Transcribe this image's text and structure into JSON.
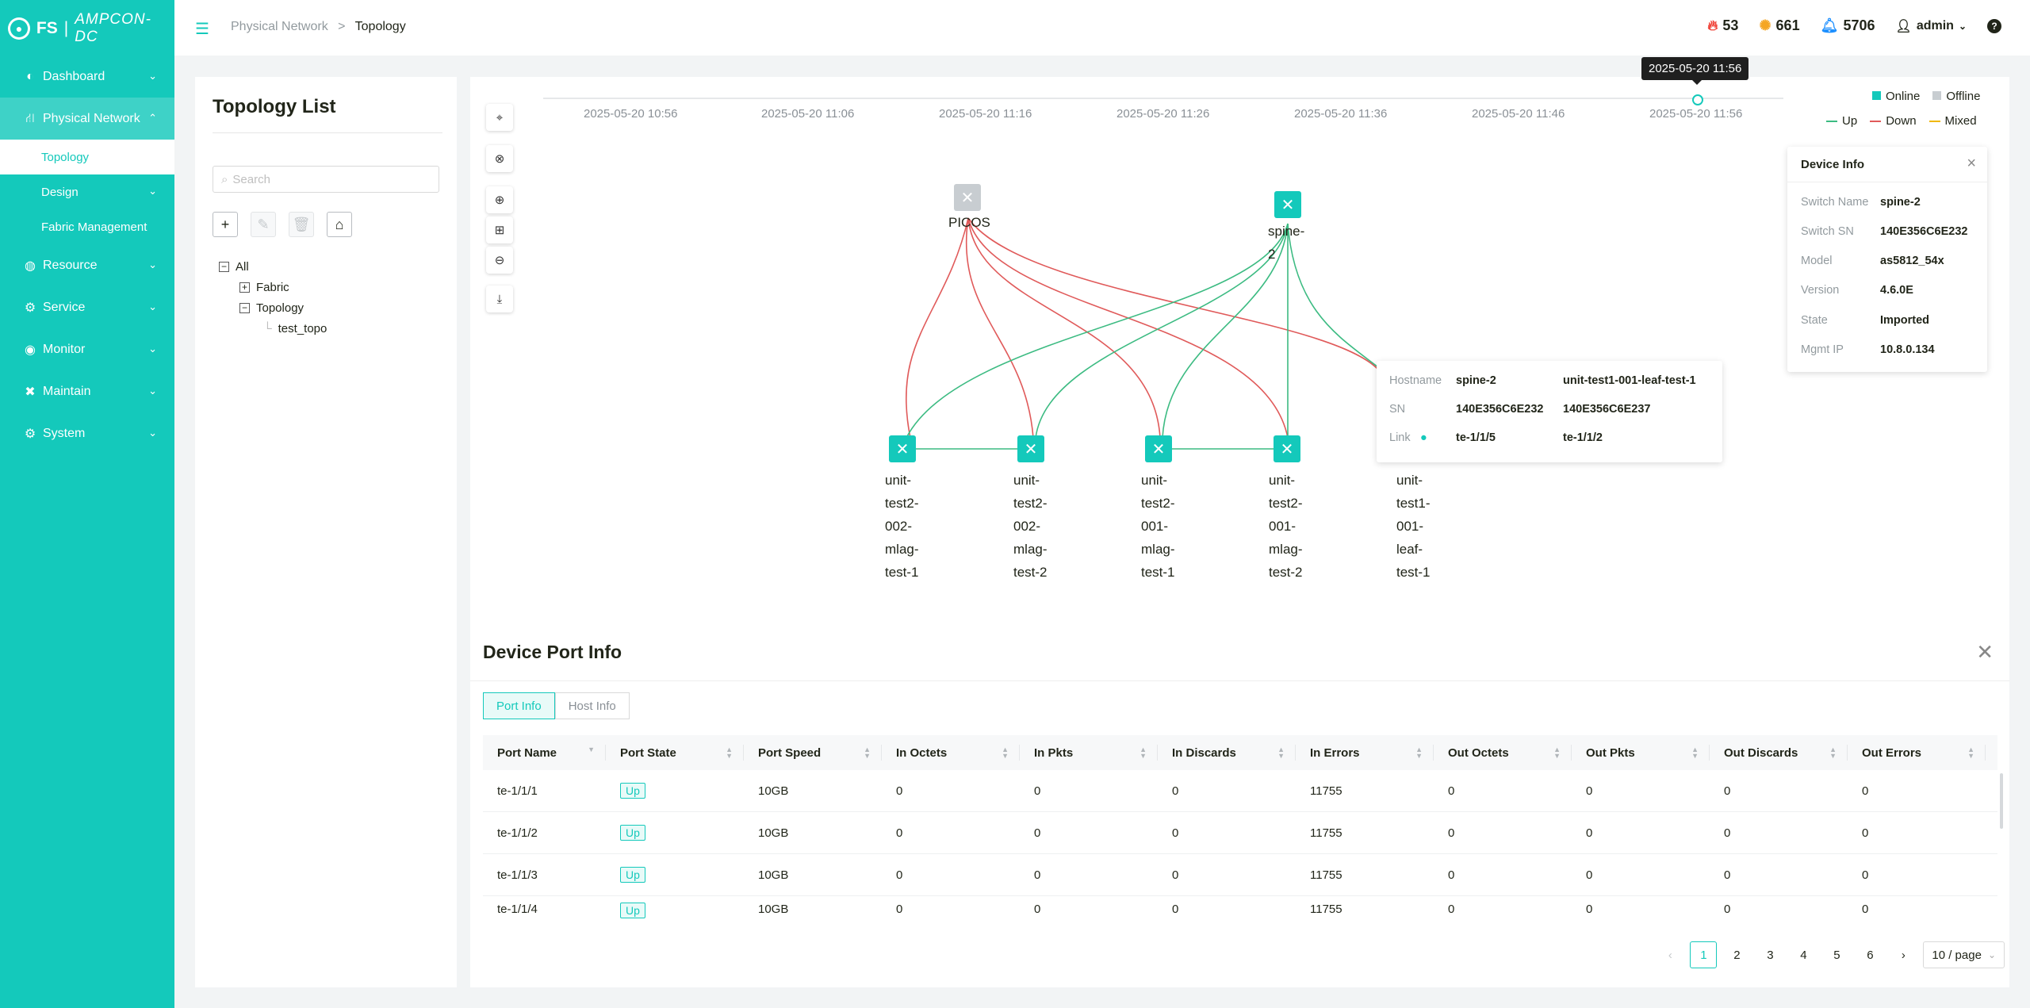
{
  "brand": {
    "logo": "FS",
    "product": "AMPCON-DC"
  },
  "sidebar": {
    "items": [
      {
        "label": "Dashboard"
      },
      {
        "label": "Physical Network",
        "subs": [
          "Topology",
          "Design",
          "Fabric Management"
        ]
      },
      {
        "label": "Resource"
      },
      {
        "label": "Service"
      },
      {
        "label": "Monitor"
      },
      {
        "label": "Maintain"
      },
      {
        "label": "System"
      }
    ]
  },
  "header": {
    "breadcrumb": {
      "parent": "Physical Network",
      "separator": ">",
      "current": "Topology"
    },
    "alerts": {
      "fire": "53",
      "warning": "661",
      "bell": "5706"
    },
    "user": "admin",
    "help": "?"
  },
  "topology_list": {
    "title": "Topology List",
    "search_placeholder": "Search",
    "tree": {
      "root": "All",
      "children": [
        "Fabric",
        "Topology"
      ],
      "leaf": "test_topo"
    }
  },
  "timeline": {
    "labels": [
      "2025-05-20 10:56",
      "2025-05-20 11:06",
      "2025-05-20 11:16",
      "2025-05-20 11:26",
      "2025-05-20 11:36",
      "2025-05-20 11:46",
      "2025-05-20 11:56"
    ],
    "tooltip": "2025-05-20 11:56"
  },
  "legend": {
    "online": "Online",
    "offline": "Offline",
    "up": "Up",
    "down": "Down",
    "mixed": "Mixed",
    "colors": {
      "online": "#14c9bb",
      "offline": "#c8cdd1",
      "up": "#3cbb82",
      "down": "#e05a5a",
      "mixed": "#f0b800"
    }
  },
  "nodes": {
    "picos": "PICOS",
    "spine": [
      "spine-",
      "2"
    ],
    "leaf1": [
      "unit-",
      "test2-",
      "002-",
      "mlag-",
      "test-1"
    ],
    "leaf2": [
      "unit-",
      "test2-",
      "002-",
      "mlag-",
      "test-2"
    ],
    "leaf3": [
      "unit-",
      "test2-",
      "001-",
      "mlag-",
      "test-1"
    ],
    "leaf4": [
      "unit-",
      "test2-",
      "001-",
      "mlag-",
      "test-2"
    ],
    "leaf5": [
      "unit-",
      "test1-",
      "001-",
      "leaf-",
      "test-1"
    ]
  },
  "device_info": {
    "title": "Device Info",
    "rows": [
      {
        "k": "Switch Name",
        "v": "spine-2"
      },
      {
        "k": "Switch SN",
        "v": "140E356C6E232"
      },
      {
        "k": "Model",
        "v": "as5812_54x"
      },
      {
        "k": "Version",
        "v": "4.6.0E"
      },
      {
        "k": "State",
        "v": "Imported"
      },
      {
        "k": "Mgmt IP",
        "v": "10.8.0.134"
      }
    ]
  },
  "link_tooltip": {
    "hostname": {
      "k": "Hostname",
      "a": "spine-2",
      "b": "unit-test1-001-leaf-test-1"
    },
    "sn": {
      "k": "SN",
      "a": "140E356C6E232",
      "b": "140E356C6E237"
    },
    "link": {
      "k": "Link",
      "a": "te-1/1/5",
      "b": "te-1/1/2"
    }
  },
  "port_info": {
    "title": "Device Port Info",
    "tabs": [
      "Port Info",
      "Host Info"
    ],
    "columns": [
      "Port Name",
      "Port State",
      "Port Speed",
      "In Octets",
      "In Pkts",
      "In Discards",
      "In Errors",
      "Out Octets",
      "Out Pkts",
      "Out Discards",
      "Out Errors"
    ],
    "rows": [
      [
        "te-1/1/1",
        "Up",
        "10GB",
        "0",
        "0",
        "0",
        "11755",
        "0",
        "0",
        "0",
        "0"
      ],
      [
        "te-1/1/2",
        "Up",
        "10GB",
        "0",
        "0",
        "0",
        "11755",
        "0",
        "0",
        "0",
        "0"
      ],
      [
        "te-1/1/3",
        "Up",
        "10GB",
        "0",
        "0",
        "0",
        "11755",
        "0",
        "0",
        "0",
        "0"
      ],
      [
        "te-1/1/4",
        "Up",
        "10GB",
        "0",
        "0",
        "0",
        "11755",
        "0",
        "0",
        "0",
        "0"
      ]
    ],
    "pages": [
      "1",
      "2",
      "3",
      "4",
      "5",
      "6"
    ],
    "page_size": "10 / page"
  }
}
